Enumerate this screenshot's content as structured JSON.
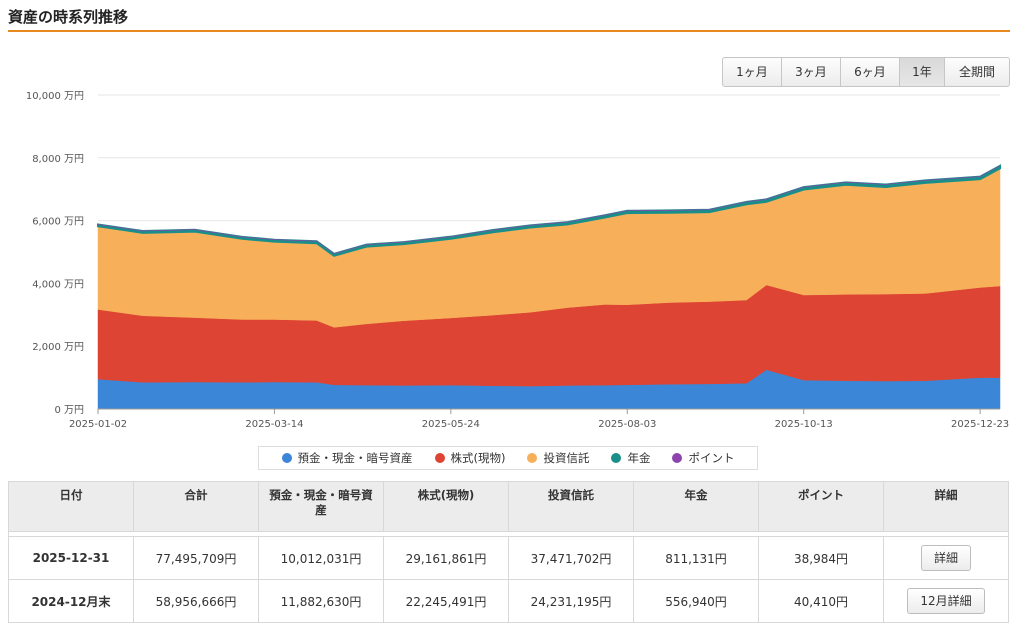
{
  "header": {
    "title": "資産の時系列推移"
  },
  "range_buttons": [
    {
      "label": "1ヶ月",
      "active": false
    },
    {
      "label": "3ヶ月",
      "active": false
    },
    {
      "label": "6ヶ月",
      "active": false
    },
    {
      "label": "1年",
      "active": true
    },
    {
      "label": "全期間",
      "active": false
    }
  ],
  "chart_data": {
    "type": "area",
    "stacked": true,
    "y_unit": "万円",
    "ylim": [
      0,
      10000
    ],
    "y_ticks": [
      0,
      2000,
      4000,
      6000,
      8000,
      10000
    ],
    "y_tick_labels": [
      "0 万円",
      "2,000 万円",
      "4,000 万円",
      "6,000 万円",
      "8,000 万円",
      "10,000 万円"
    ],
    "x_tick_labels": [
      "2025-01-02",
      "2025-03-14",
      "2025-05-24",
      "2025-08-03",
      "2025-10-13",
      "2025-12-23"
    ],
    "x": [
      "2025-01-02",
      "2025-01-20",
      "2025-02-10",
      "2025-03-01",
      "2025-03-14",
      "2025-03-31",
      "2025-04-07",
      "2025-04-20",
      "2025-05-05",
      "2025-05-24",
      "2025-06-10",
      "2025-06-25",
      "2025-07-10",
      "2025-07-25",
      "2025-08-03",
      "2025-08-20",
      "2025-09-05",
      "2025-09-20",
      "2025-09-28",
      "2025-10-13",
      "2025-10-30",
      "2025-11-15",
      "2025-12-01",
      "2025-12-23",
      "2025-12-31"
    ],
    "series": [
      {
        "name": "預金・現金・暗号資産",
        "color": "#3b86d6",
        "values": [
          950,
          850,
          860,
          850,
          860,
          850,
          770,
          760,
          750,
          760,
          740,
          730,
          750,
          760,
          770,
          790,
          800,
          820,
          1250,
          920,
          900,
          890,
          900,
          1000,
          1001
        ]
      },
      {
        "name": "株式(現物)",
        "color": "#dd4433",
        "values": [
          2220,
          2120,
          2050,
          2000,
          1990,
          1970,
          1830,
          1950,
          2060,
          2140,
          2250,
          2350,
          2480,
          2570,
          2550,
          2600,
          2620,
          2650,
          2700,
          2710,
          2750,
          2770,
          2780,
          2870,
          2916
        ]
      },
      {
        "name": "投資信託",
        "color": "#f7b059",
        "values": [
          2650,
          2640,
          2740,
          2570,
          2480,
          2460,
          2280,
          2460,
          2440,
          2520,
          2640,
          2700,
          2650,
          2770,
          2920,
          2860,
          2850,
          3050,
          2650,
          3360,
          3490,
          3410,
          3520,
          3450,
          3747
        ]
      },
      {
        "name": "年金",
        "color": "#1a8f8a",
        "values": [
          56,
          58,
          60,
          61,
          62,
          63,
          63,
          65,
          66,
          68,
          69,
          70,
          71,
          72,
          73,
          74,
          75,
          76,
          77,
          78,
          79,
          79,
          80,
          81,
          81
        ]
      },
      {
        "name": "ポイント",
        "color": "#8e44ad",
        "values": [
          4,
          4,
          4,
          4,
          4,
          4,
          4,
          4,
          4,
          4,
          4,
          4,
          4,
          4,
          4,
          4,
          4,
          4,
          4,
          4,
          4,
          4,
          4,
          4,
          4
        ]
      }
    ]
  },
  "legend": [
    {
      "label": "預金・現金・暗号資産",
      "color": "#3b86d6"
    },
    {
      "label": "株式(現物)",
      "color": "#dd4433"
    },
    {
      "label": "投資信託",
      "color": "#f7b059"
    },
    {
      "label": "年金",
      "color": "#1a8f8a"
    },
    {
      "label": "ポイント",
      "color": "#8e44ad"
    }
  ],
  "table": {
    "headers": [
      "日付",
      "合計",
      "預金・現金・暗号資産",
      "株式(現物)",
      "投資信託",
      "年金",
      "ポイント",
      "詳細"
    ],
    "rows": [
      {
        "date": "2025-12-31",
        "total": "77,495,709円",
        "cash": "10,012,031円",
        "stocks": "29,161,861円",
        "funds": "37,471,702円",
        "pension": "811,131円",
        "points": "38,984円",
        "detail": "詳細"
      },
      {
        "date": "2024-12月末",
        "total": "58,956,666円",
        "cash": "11,882,630円",
        "stocks": "22,245,491円",
        "funds": "24,231,195円",
        "pension": "556,940円",
        "points": "40,410円",
        "detail": "12月詳細"
      }
    ]
  }
}
